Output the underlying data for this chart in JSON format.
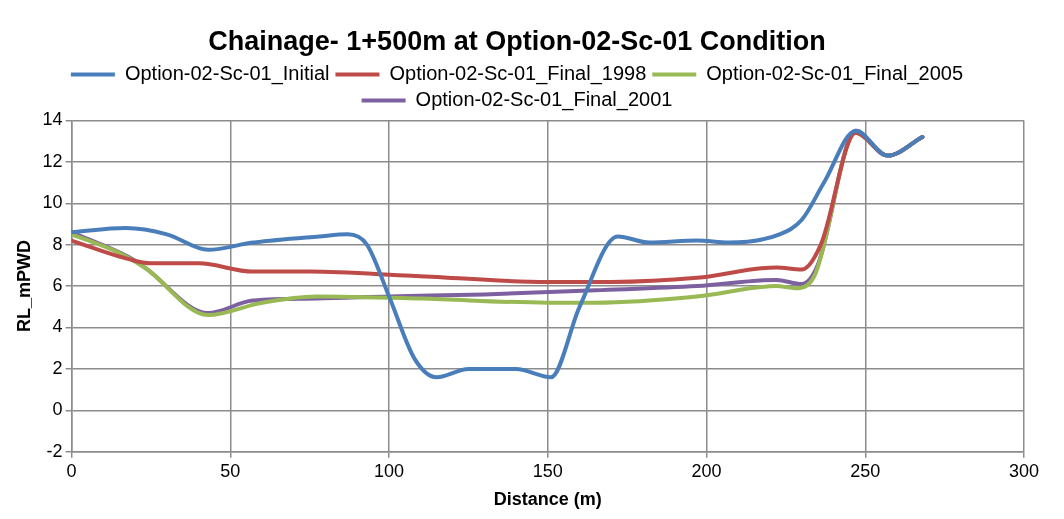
{
  "chart_data": {
    "type": "line",
    "title": "Chainage- 1+500m at Option-02-Sc-01 Condition",
    "xlabel": "Distance (m)",
    "ylabel": "RL_mPWD",
    "xlim": [
      0,
      300
    ],
    "xticks": [
      0,
      50,
      100,
      150,
      200,
      250,
      300
    ],
    "ylim": [
      -2,
      14
    ],
    "yticks": [
      -2,
      0,
      2,
      4,
      6,
      8,
      10,
      12,
      14
    ],
    "grid": true,
    "legend": "top",
    "marker": "none",
    "line_style": "solid",
    "series": [
      {
        "name": "Option-02-Sc-01_Initial",
        "color": "#4a7ebb",
        "x": [
          0,
          17,
          30,
          43,
          57,
          78,
          87,
          93,
          100,
          108,
          115,
          125,
          140,
          151,
          160,
          172,
          182,
          197,
          207,
          223,
          230,
          237,
          247,
          257,
          268
        ],
        "values": [
          8.6,
          8.8,
          8.5,
          7.75,
          8.1,
          8.4,
          8.5,
          8,
          5.5,
          2.5,
          1.6,
          2,
          2,
          1.6,
          5,
          8.4,
          8.1,
          8.2,
          8.1,
          8.5,
          9.2,
          11,
          13.5,
          12.3,
          13.2
        ]
      },
      {
        "name": "Option-02-Sc-01_Final_1998",
        "color": "#be4b48",
        "x": [
          0,
          18,
          25,
          40,
          57,
          75,
          107,
          150,
          170,
          197,
          222,
          230,
          236,
          247,
          257,
          268
        ],
        "values": [
          8.2,
          7.3,
          7.1,
          7.1,
          6.7,
          6.7,
          6.5,
          6.2,
          6.2,
          6.4,
          6.9,
          6.8,
          8,
          13.4,
          12.3,
          13.2
        ]
      },
      {
        "name": "Option-02-Sc-01_Final_2005",
        "color": "#98b954",
        "x": [
          0,
          15,
          23,
          43,
          60,
          77,
          110,
          150,
          165,
          197,
          222,
          228,
          234,
          247,
          257,
          268
        ],
        "values": [
          8.5,
          7.6,
          6.9,
          4.6,
          5.2,
          5.5,
          5.4,
          5.2,
          5.2,
          5.5,
          6,
          5.9,
          6.5,
          13.4,
          12.3,
          13.2
        ]
      },
      {
        "name": "Option-02-Sc-01_Final_2001",
        "color": "#7d60a0",
        "x": [
          0,
          18,
          23,
          43,
          57,
          77,
          100,
          130,
          165,
          197,
          222,
          230,
          235,
          247,
          257,
          268
        ],
        "values": [
          8.6,
          7.4,
          6.9,
          4.7,
          5.3,
          5.4,
          5.5,
          5.6,
          5.8,
          6,
          6.3,
          6.1,
          7,
          13.5,
          12.3,
          13.2
        ]
      }
    ]
  }
}
